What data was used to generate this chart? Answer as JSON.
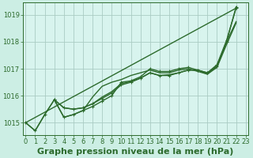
{
  "background_color": "#cceee4",
  "plot_bg_color": "#d8f4ee",
  "grid_color": "#aaccc4",
  "line_color": "#2d6b2d",
  "title": "Graphe pression niveau de la mer (hPa)",
  "y_ticks": [
    1015,
    1016,
    1017,
    1018,
    1019
  ],
  "x_ticks": [
    0,
    1,
    2,
    3,
    4,
    5,
    6,
    7,
    8,
    9,
    10,
    11,
    12,
    13,
    14,
    15,
    16,
    17,
    18,
    19,
    20,
    21,
    22,
    23
  ],
  "ylim": [
    1014.55,
    1019.45
  ],
  "xlim": [
    -0.3,
    23.3
  ],
  "series": [
    {
      "x": [
        0,
        1,
        2,
        3,
        4,
        5,
        6,
        7,
        8,
        9,
        10,
        11,
        12,
        13,
        14,
        15,
        16,
        17,
        18,
        19,
        20,
        21,
        22
      ],
      "y": [
        1015.0,
        1014.7,
        1015.3,
        1015.85,
        1015.2,
        1015.3,
        1015.45,
        1015.6,
        1015.8,
        1016.0,
        1016.5,
        1016.55,
        1016.7,
        1017.0,
        1016.9,
        1016.9,
        1017.0,
        1017.05,
        1016.95,
        1016.85,
        1017.15,
        1018.05,
        1019.25
      ],
      "marker": true
    },
    {
      "x": [
        0,
        1,
        2,
        3,
        4,
        5,
        6,
        7,
        8,
        9,
        10,
        11,
        12,
        13,
        14,
        15,
        16,
        17,
        18,
        19,
        20,
        21,
        22
      ],
      "y": [
        1015.0,
        1014.7,
        1015.3,
        1015.85,
        1015.2,
        1015.3,
        1015.45,
        1015.95,
        1016.35,
        1016.5,
        1016.6,
        1016.75,
        1016.85,
        1016.95,
        1016.85,
        1016.85,
        1016.95,
        1017.0,
        1016.9,
        1016.8,
        1017.1,
        1018.0,
        1018.75
      ],
      "marker": false
    },
    {
      "x": [
        3,
        4,
        5,
        6,
        7,
        8,
        9,
        10,
        11,
        12,
        13,
        14,
        15,
        16,
        17,
        18,
        19,
        20,
        21,
        22
      ],
      "y": [
        1015.85,
        1015.55,
        1015.5,
        1015.55,
        1015.7,
        1015.9,
        1016.1,
        1016.4,
        1016.5,
        1016.65,
        1016.85,
        1016.75,
        1016.75,
        1016.85,
        1016.95,
        1016.95,
        1016.85,
        1017.1,
        1018.0,
        1019.3
      ],
      "marker": true
    },
    {
      "x": [
        3,
        4,
        5,
        6,
        7,
        8,
        9,
        10,
        11,
        12,
        13,
        14,
        15,
        16,
        17,
        18,
        19,
        20,
        21,
        22
      ],
      "y": [
        1015.85,
        1015.55,
        1015.5,
        1015.55,
        1015.7,
        1015.95,
        1016.15,
        1016.45,
        1016.52,
        1016.65,
        1016.85,
        1016.75,
        1016.78,
        1016.85,
        1016.95,
        1016.95,
        1016.8,
        1017.05,
        1017.9,
        1018.7
      ],
      "marker": false
    },
    {
      "x": [
        0,
        22
      ],
      "y": [
        1015.0,
        1019.25
      ],
      "marker": false,
      "straight": true
    }
  ],
  "title_fontsize": 8,
  "tick_fontsize": 6,
  "linewidth": 1.0,
  "markersize": 3.5
}
